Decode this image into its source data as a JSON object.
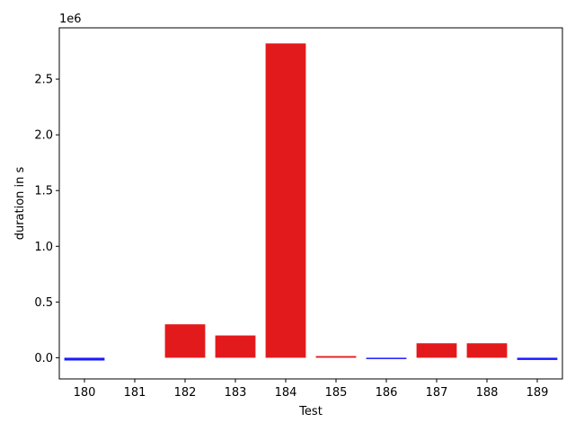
{
  "chart_data": {
    "type": "bar",
    "categories": [
      "180",
      "181",
      "182",
      "183",
      "184",
      "185",
      "186",
      "187",
      "188",
      "189"
    ],
    "values": [
      -25000,
      0,
      300000,
      200000,
      2820000,
      15000,
      -8000,
      130000,
      130000,
      -20000
    ],
    "bar_colors": [
      "#1a1aff",
      "#1a1aff",
      "#e31a1c",
      "#e31a1c",
      "#e31a1c",
      "#e31a1c",
      "#1a1aff",
      "#e31a1c",
      "#e31a1c",
      "#1a1aff"
    ],
    "xlabel": "Test",
    "ylabel": "duration in s",
    "y_offset_label": "1e6",
    "ylim": [
      -190000,
      2960000
    ],
    "yticks": [
      0,
      500000,
      1000000,
      1500000,
      2000000,
      2500000
    ],
    "ytick_labels": [
      "0.0",
      "0.5",
      "1.0",
      "1.5",
      "2.0",
      "2.5"
    ],
    "grid": false
  }
}
